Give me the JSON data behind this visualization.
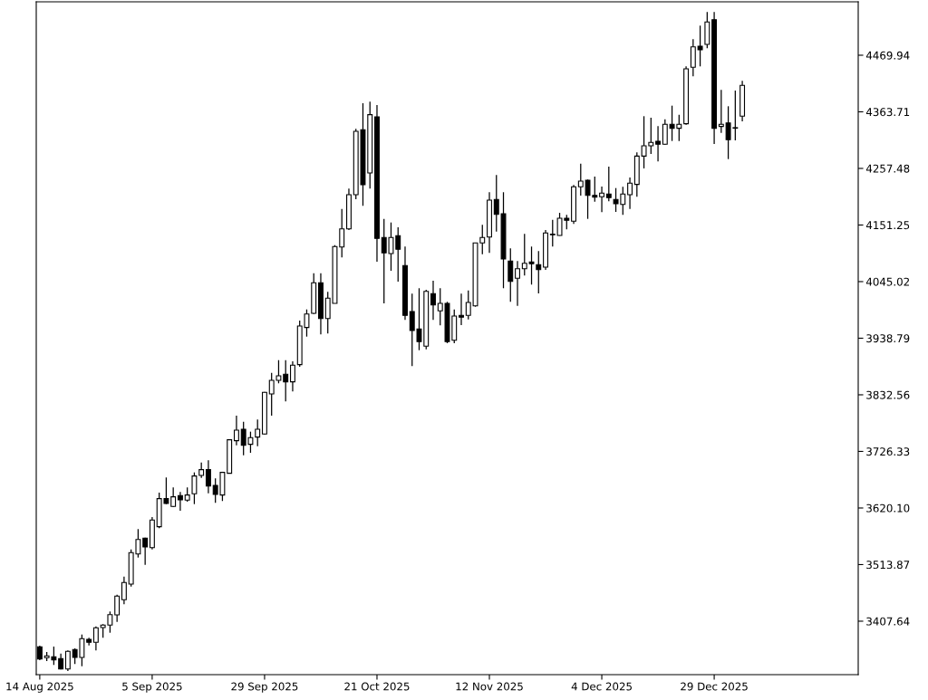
{
  "chart_data": {
    "type": "candlestick",
    "categories": [
      "14 Aug 2025",
      null,
      null,
      null,
      null,
      null,
      null,
      null,
      null,
      null,
      null,
      null,
      null,
      null,
      null,
      null,
      "5 Sep 2025",
      null,
      null,
      null,
      null,
      null,
      null,
      null,
      null,
      null,
      null,
      null,
      null,
      null,
      null,
      null,
      "29 Sep 2025",
      null,
      null,
      null,
      null,
      null,
      null,
      null,
      null,
      null,
      null,
      null,
      null,
      null,
      null,
      null,
      "21 Oct 2025",
      null,
      null,
      null,
      null,
      null,
      null,
      null,
      null,
      null,
      null,
      null,
      null,
      null,
      null,
      null,
      "12 Nov 2025",
      null,
      null,
      null,
      null,
      null,
      null,
      null,
      null,
      null,
      null,
      null,
      null,
      null,
      null,
      null,
      "4 Dec 2025",
      null,
      null,
      null,
      null,
      null,
      null,
      null,
      null,
      null,
      null,
      null,
      null,
      null,
      null,
      null,
      "29 Dec 2025",
      null,
      null,
      null,
      null,
      null,
      null,
      null,
      null,
      null,
      null,
      null,
      null,
      null,
      null,
      null,
      null,
      null,
      null,
      null,
      null
    ],
    "ohlc": [
      [
        3359.5,
        3361.8,
        3334.5,
        3336.7
      ],
      [
        3339.1,
        3349.8,
        3332.8,
        3342.5
      ],
      [
        3340.8,
        3360.0,
        3325.5,
        3335.0
      ],
      [
        3337.4,
        3346.9,
        3317.0,
        3318.0
      ],
      [
        3318.0,
        3352.7,
        3314.1,
        3351.0
      ],
      [
        3354.4,
        3356.6,
        3327.2,
        3339.6
      ],
      [
        3339.6,
        3382.6,
        3323.1,
        3374.8
      ],
      [
        3373.6,
        3376.5,
        3362.2,
        3368.0
      ],
      [
        3368.0,
        3397.9,
        3352.7,
        3395.2
      ],
      [
        3395.7,
        3402.0,
        3376.5,
        3400.3
      ],
      [
        3400.3,
        3425.8,
        3386.0,
        3420.0
      ],
      [
        3419.5,
        3457.4,
        3406.4,
        3454.7
      ],
      [
        3447.9,
        3491.4,
        3439.4,
        3480.2
      ],
      [
        3477.3,
        3542.4,
        3472.7,
        3536.3
      ],
      [
        3533.9,
        3580.5,
        3527.1,
        3561.1
      ],
      [
        3563.5,
        3564.5,
        3513.5,
        3547.0
      ],
      [
        3545.8,
        3603.1,
        3542.4,
        3597.5
      ],
      [
        3584.9,
        3649.0,
        3582.2,
        3637.6
      ],
      [
        3637.6,
        3677.4,
        3627.4,
        3628.6
      ],
      [
        3623.0,
        3658.7,
        3621.8,
        3641.0
      ],
      [
        3643.4,
        3650.2,
        3615.0,
        3635.4
      ],
      [
        3634.9,
        3658.7,
        3632.0,
        3644.4
      ],
      [
        3646.8,
        3686.9,
        3627.4,
        3680.1
      ],
      [
        3681.3,
        3705.6,
        3676.7,
        3692.0
      ],
      [
        3692.0,
        3709.6,
        3647.8,
        3661.4
      ],
      [
        3662.6,
        3675.7,
        3629.8,
        3645.6
      ],
      [
        3644.4,
        3688.1,
        3633.2,
        3686.9
      ],
      [
        3685.2,
        3749.3,
        3684.7,
        3748.1
      ],
      [
        3746.4,
        3793.4,
        3737.9,
        3766.3
      ],
      [
        3768.0,
        3782.1,
        3719.2,
        3737.9
      ],
      [
        3739.6,
        3763.4,
        3723.7,
        3752.1
      ],
      [
        3753.2,
        3786.1,
        3736.2,
        3768.0
      ],
      [
        3758.9,
        3838.2,
        3757.8,
        3837.1
      ],
      [
        3834.2,
        3873.8,
        3793.4,
        3859.7
      ],
      [
        3859.7,
        3897.6,
        3854.1,
        3868.2
      ],
      [
        3871.1,
        3897.6,
        3820.1,
        3856.9
      ],
      [
        3856.9,
        3895.4,
        3838.8,
        3888.1
      ],
      [
        3889.2,
        3971.9,
        3885.2,
        3961.7
      ],
      [
        3958.9,
        3992.8,
        3941.8,
        3984.3
      ],
      [
        3985.5,
        4060.8,
        3984.3,
        4042.8
      ],
      [
        4042.8,
        4060.8,
        3945.9,
        3975.8
      ],
      [
        3975.8,
        4025.8,
        3947.6,
        4013.9
      ],
      [
        4004.2,
        4113.5,
        4004.2,
        4110.8
      ],
      [
        4110.1,
        4181.5,
        4090.4,
        4144.1
      ],
      [
        4144.1,
        4219.6,
        4141.9,
        4208.2
      ],
      [
        4208.2,
        4331.8,
        4199.7,
        4327.2
      ],
      [
        4330.0,
        4379.8,
        4187.3,
        4226.9
      ],
      [
        4249.0,
        4382.7,
        4219.6,
        4358.3
      ],
      [
        4354.3,
        4376.4,
        4082.4,
        4126.1
      ],
      [
        4127.8,
        4162.8,
        4004.2,
        4098.9
      ],
      [
        4097.7,
        4156.0,
        4065.4,
        4127.8
      ],
      [
        4131.2,
        4147.0,
        4045.0,
        4105.7
      ],
      [
        4075.1,
        4110.8,
        3973.1,
        3981.6
      ],
      [
        3988.9,
        4022.4,
        3886.4,
        3953.2
      ],
      [
        3956.1,
        4032.6,
        3916.3,
        3932.3
      ],
      [
        3923.8,
        4029.7,
        3918.0,
        4026.8
      ],
      [
        4022.4,
        4046.7,
        3973.1,
        4001.3
      ],
      [
        3990.1,
        4032.6,
        3962.9,
        4004.2
      ],
      [
        4004.2,
        4007.1,
        3929.4,
        3932.3
      ],
      [
        3935.0,
        3992.8,
        3929.4,
        3980.4
      ],
      [
        3981.6,
        4022.4,
        3963.4,
        3978.2
      ],
      [
        3981.6,
        4028.5,
        3974.1,
        4005.9
      ],
      [
        3999.6,
        4118.1,
        3997.9,
        4117.6
      ],
      [
        4117.6,
        4151.6,
        4096.5,
        4127.8
      ],
      [
        4128.8,
        4212.8,
        4098.9,
        4198.0
      ],
      [
        4199.2,
        4245.1,
        4139.0,
        4171.3
      ],
      [
        4172.5,
        4212.8,
        4032.6,
        4087.5
      ],
      [
        4083.6,
        4107.4,
        4007.1,
        4045.5
      ],
      [
        4051.3,
        4083.6,
        3999.6,
        4069.3
      ],
      [
        4069.3,
        4134.6,
        4056.4,
        4079.5
      ],
      [
        4081.9,
        4110.8,
        4039.4,
        4078.5
      ],
      [
        4076.8,
        4102.3,
        4022.9,
        4067.6
      ],
      [
        4072.2,
        4141.9,
        4067.1,
        4136.3
      ],
      [
        4134.0,
        4161.1,
        4110.8,
        4133.0
      ],
      [
        4131.7,
        4174.2,
        4131.2,
        4164.0
      ],
      [
        4164.0,
        4170.3,
        4143.1,
        4160.1
      ],
      [
        4158.4,
        4226.4,
        4153.3,
        4223.0
      ],
      [
        4223.0,
        4266.5,
        4206.5,
        4233.7
      ],
      [
        4235.4,
        4236.6,
        4162.8,
        4207.0
      ],
      [
        4207.0,
        4242.2,
        4195.1,
        4203.6
      ],
      [
        4204.3,
        4223.5,
        4175.4,
        4211.1
      ],
      [
        4209.4,
        4260.9,
        4195.8,
        4202.6
      ],
      [
        4199.2,
        4220.6,
        4175.9,
        4191.2
      ],
      [
        4190.0,
        4223.0,
        4170.3,
        4209.4
      ],
      [
        4208.2,
        4240.5,
        4181.5,
        4229.8
      ],
      [
        4227.4,
        4287.6,
        4204.3,
        4280.7
      ],
      [
        4280.7,
        4355.5,
        4257.5,
        4300.0
      ],
      [
        4300.0,
        4352.7,
        4284.7,
        4306.2
      ],
      [
        4308.5,
        4336.9,
        4270.6,
        4302.9
      ],
      [
        4302.9,
        4349.8,
        4301.7,
        4340.2
      ],
      [
        4340.2,
        4375.3,
        4309.0,
        4332.8
      ],
      [
        4332.8,
        4358.3,
        4309.0,
        4340.2
      ],
      [
        4341.3,
        4449.0,
        4339.6,
        4444.4
      ],
      [
        4447.3,
        4500.0,
        4430.3,
        4485.7
      ],
      [
        4486.9,
        4525.5,
        4449.0,
        4480.1
      ],
      [
        4490.3,
        4551.0,
        4483.0,
        4532.3
      ],
      [
        4536.7,
        4551.0,
        4303.4,
        4332.8
      ],
      [
        4336.2,
        4404.8,
        4324.3,
        4340.2
      ],
      [
        4342.9,
        4374.2,
        4275.0,
        4311.3
      ],
      [
        4333.0,
        4403.6,
        4310.2,
        4334.0
      ],
      [
        4355.5,
        4421.8,
        4345.9,
        4413.3
      ],
      null,
      null,
      null,
      null,
      null,
      null,
      null,
      null,
      null,
      null,
      null,
      null,
      null,
      null,
      null,
      null
    ],
    "ylim": [
      3307.3,
      4570.2
    ],
    "yticks": [
      {
        "value": 3407.64,
        "label": "3407.64"
      },
      {
        "value": 3513.87,
        "label": "3513.87"
      },
      {
        "value": 3620.1,
        "label": "3620.10"
      },
      {
        "value": 3726.33,
        "label": "3726.33"
      },
      {
        "value": 3832.56,
        "label": "3832.56"
      },
      {
        "value": 3938.79,
        "label": "3938.79"
      },
      {
        "value": 4045.02,
        "label": "4045.02"
      },
      {
        "value": 4151.25,
        "label": "4151.25"
      },
      {
        "value": 4257.48,
        "label": "4257.48"
      },
      {
        "value": 4363.71,
        "label": "4363.71"
      },
      {
        "value": 4469.94,
        "label": "4469.94"
      }
    ]
  }
}
